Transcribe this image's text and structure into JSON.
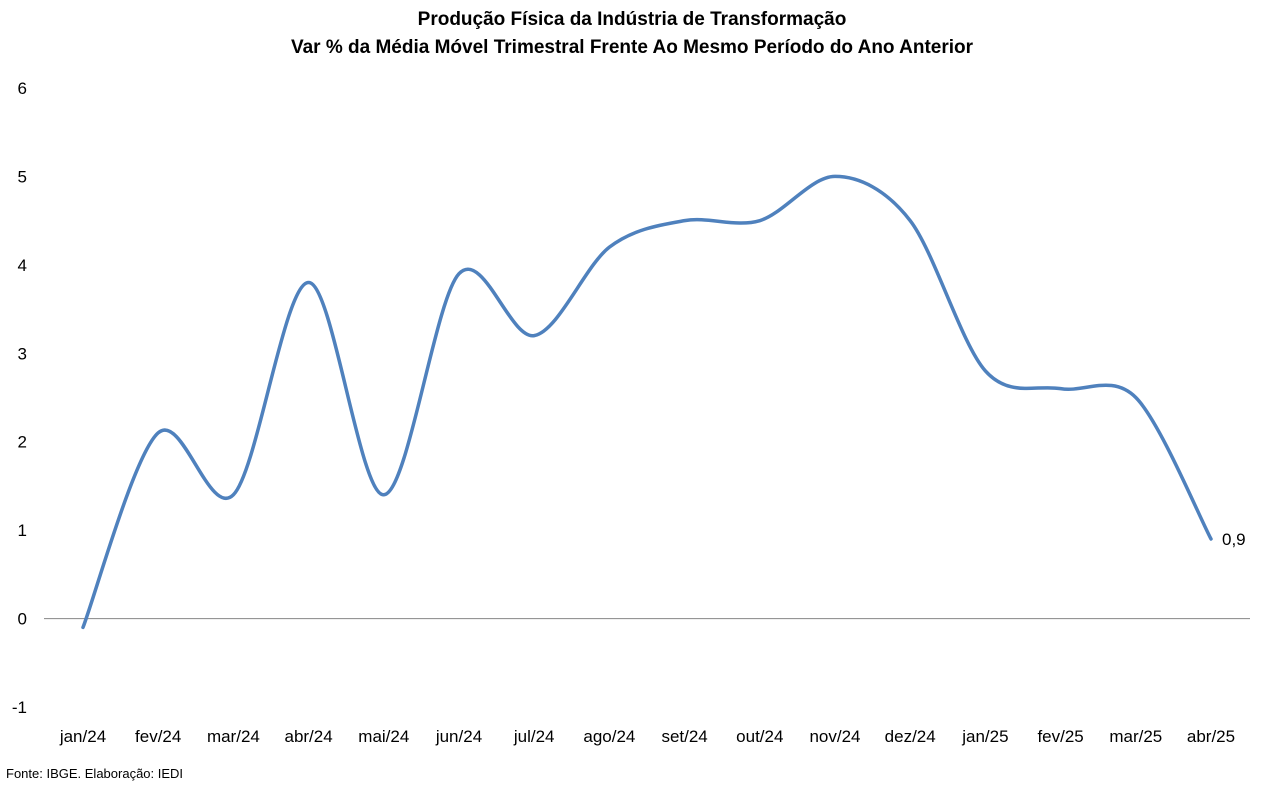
{
  "chart_data": {
    "type": "line",
    "title": "Produção Física da Indústria de Transformação",
    "subtitle": "Var % da Média Móvel Trimestral Frente Ao Mesmo Período do Ano Anterior",
    "xlabel": "",
    "ylabel": "",
    "categories": [
      "jan/24",
      "fev/24",
      "mar/24",
      "abr/24",
      "mai/24",
      "jun/24",
      "jul/24",
      "ago/24",
      "set/24",
      "out/24",
      "nov/24",
      "dez/24",
      "jan/25",
      "fev/25",
      "mar/25",
      "abr/25"
    ],
    "series": [
      {
        "name": "",
        "values": [
          -0.1,
          2.1,
          1.4,
          3.8,
          1.4,
          3.9,
          3.2,
          4.2,
          4.5,
          4.5,
          5.0,
          4.5,
          2.8,
          2.6,
          2.5,
          0.9
        ],
        "color": "#4f81bd"
      }
    ],
    "ylim": [
      -1,
      6
    ],
    "yticks": [
      "-1",
      "0",
      "1",
      "2",
      "3",
      "4",
      "5",
      "6"
    ],
    "grid": false,
    "legend": "none",
    "annotations": [
      {
        "category": "abr/25",
        "text": "0,9"
      }
    ]
  },
  "footer": {
    "source": "Fonte: IBGE. Elaboração: IEDI"
  }
}
